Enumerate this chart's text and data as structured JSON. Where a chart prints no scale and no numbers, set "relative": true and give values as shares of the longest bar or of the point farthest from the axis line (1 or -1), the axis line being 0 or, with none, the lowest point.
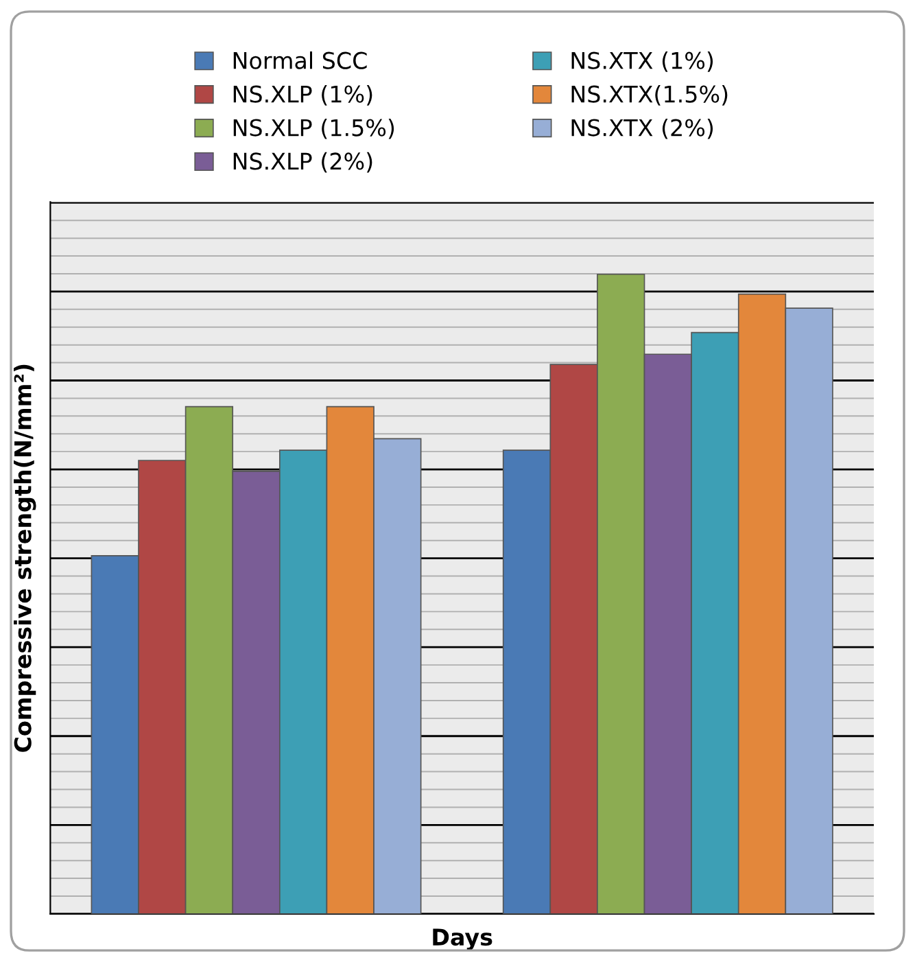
{
  "chart_data": {
    "type": "bar",
    "relative": true,
    "xlabel": "Days",
    "ylabel": "Compressive strength(N/mm²)",
    "categories": [
      null,
      null
    ],
    "series": [
      {
        "name": "Normal SCC",
        "color": "#4a7ab5",
        "values": [
          0.56,
          0.725
        ]
      },
      {
        "name": "NS.XLP (1%)",
        "color": "#b04745",
        "values": [
          0.709,
          0.859
        ]
      },
      {
        "name": "NS.XLP (1.5%)",
        "color": "#8cac52",
        "values": [
          0.793,
          1
        ]
      },
      {
        "name": "NS.XLP (2%)",
        "color": "#7a5d96",
        "values": [
          0.692,
          0.875
        ]
      },
      {
        "name": "NS.XTX (1%)",
        "color": "#3d9fb5",
        "values": [
          0.725,
          0.909
        ]
      },
      {
        "name": "NS.XTX(1.5%)",
        "color": "#e3873b",
        "values": [
          0.793,
          0.969
        ]
      },
      {
        "name": "NS.XTX (2%)",
        "color": "#97aed6",
        "values": [
          0.743,
          0.947
        ]
      }
    ],
    "grid": "y",
    "legend": "top"
  }
}
